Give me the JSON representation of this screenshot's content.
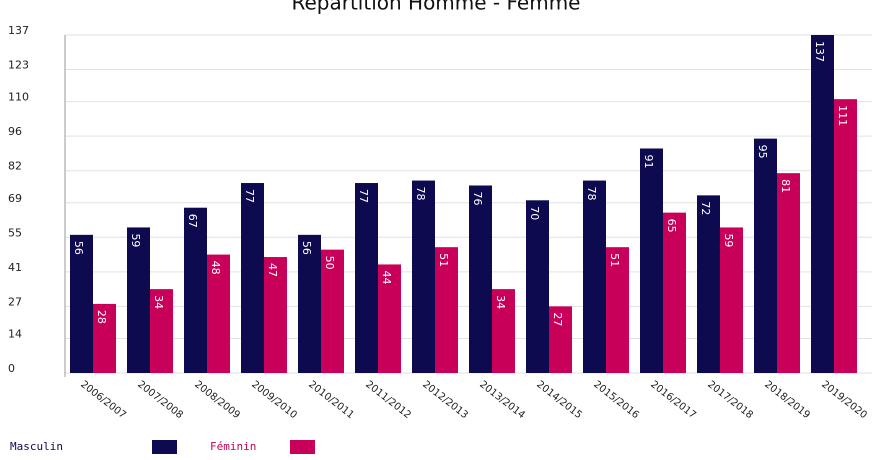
{
  "chart_data": {
    "type": "bar",
    "title": "Répartition Homme - Femme",
    "categories": [
      "2006/2007",
      "2007/2008",
      "2008/2009",
      "2009/2010",
      "2010/2011",
      "2011/2012",
      "2012/2013",
      "2013/2014",
      "2014/2015",
      "2015/2016",
      "2016/2017",
      "2017/2018",
      "2018/2019",
      "2019/2020"
    ],
    "series": [
      {
        "name": "Masculin",
        "color": "#0d0a4f",
        "values": [
          56,
          59,
          67,
          77,
          56,
          77,
          78,
          76,
          70,
          78,
          91,
          72,
          95,
          137
        ]
      },
      {
        "name": "Féminin",
        "color": "#c8005a",
        "values": [
          28,
          34,
          48,
          47,
          50,
          44,
          51,
          34,
          27,
          51,
          65,
          59,
          81,
          111
        ]
      }
    ],
    "ylim": [
      0,
      137
    ],
    "yticks": [
      0,
      14,
      27,
      41,
      55,
      69,
      82,
      96,
      110,
      123,
      137
    ],
    "grid": true,
    "legend": "bottom"
  }
}
